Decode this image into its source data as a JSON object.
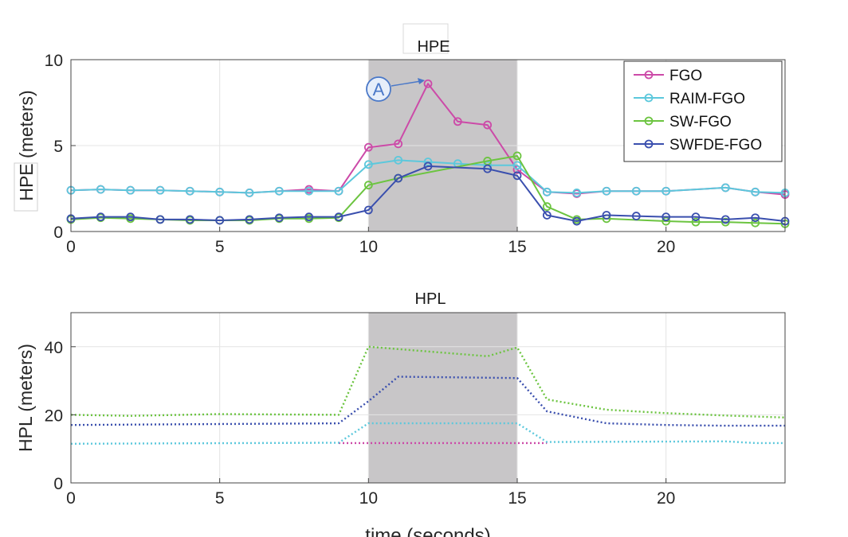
{
  "chart_data": [
    {
      "type": "line",
      "title": "HPE",
      "ylabel": "HPE (meters)",
      "xlabel": "",
      "xlim": [
        0,
        24
      ],
      "ylim": [
        0,
        10
      ],
      "xticks": [
        0,
        5,
        10,
        15,
        20
      ],
      "yticks": [
        0,
        5,
        10
      ],
      "grid": true,
      "legend_position": "top-right",
      "shaded_region": [
        10,
        15
      ],
      "marker": "circle",
      "annotation": {
        "label": "A",
        "points_to": {
          "x": 12,
          "y": 8.5
        }
      },
      "series": [
        {
          "name": "FGO",
          "color": "#cc4aa8",
          "x": [
            0,
            1,
            2,
            3,
            4,
            5,
            6,
            7,
            8,
            9,
            10,
            11,
            12,
            13,
            14,
            15,
            16,
            17,
            18,
            19,
            20,
            22,
            23,
            24
          ],
          "y": [
            2.4,
            2.45,
            2.4,
            2.4,
            2.35,
            2.3,
            2.25,
            2.35,
            2.45,
            2.35,
            4.9,
            5.1,
            8.6,
            6.4,
            6.2,
            3.6,
            2.3,
            2.2,
            2.35,
            2.35,
            2.35,
            2.55,
            2.3,
            2.15
          ]
        },
        {
          "name": "RAIM-FGO",
          "color": "#5cc8dc",
          "x": [
            0,
            1,
            2,
            3,
            4,
            5,
            6,
            7,
            8,
            9,
            10,
            11,
            12,
            13,
            14,
            15,
            16,
            17,
            18,
            19,
            20,
            22,
            23,
            24
          ],
          "y": [
            2.4,
            2.45,
            2.4,
            2.4,
            2.35,
            2.3,
            2.25,
            2.35,
            2.35,
            2.35,
            3.9,
            4.15,
            4.05,
            3.95,
            3.85,
            3.85,
            2.3,
            2.25,
            2.35,
            2.35,
            2.35,
            2.55,
            2.3,
            2.25
          ]
        },
        {
          "name": "SW-FGO",
          "color": "#6cc440",
          "x": [
            0,
            1,
            2,
            3,
            4,
            5,
            6,
            7,
            8,
            9,
            10,
            11,
            14,
            15,
            16,
            17,
            18,
            20,
            21,
            22,
            23,
            24
          ],
          "y": [
            0.7,
            0.8,
            0.75,
            0.7,
            0.65,
            0.65,
            0.65,
            0.75,
            0.75,
            0.8,
            2.7,
            3.1,
            4.1,
            4.4,
            1.45,
            0.7,
            0.75,
            0.6,
            0.55,
            0.55,
            0.5,
            0.45
          ]
        },
        {
          "name": "SWFDE-FGO",
          "color": "#3a4fae",
          "x": [
            0,
            1,
            2,
            3,
            4,
            5,
            6,
            7,
            8,
            9,
            10,
            11,
            12,
            14,
            15,
            16,
            17,
            18,
            19,
            20,
            21,
            22,
            23,
            24
          ],
          "y": [
            0.75,
            0.85,
            0.85,
            0.7,
            0.7,
            0.65,
            0.7,
            0.8,
            0.85,
            0.85,
            1.25,
            3.1,
            3.8,
            3.65,
            3.25,
            0.95,
            0.6,
            0.95,
            0.9,
            0.85,
            0.85,
            0.7,
            0.8,
            0.6
          ]
        }
      ]
    },
    {
      "type": "line",
      "title": "HPL",
      "ylabel": "HPL (meters)",
      "xlabel": "time (seconds)",
      "xlim": [
        0,
        24
      ],
      "ylim": [
        0,
        50
      ],
      "xticks": [
        0,
        5,
        10,
        15,
        20
      ],
      "yticks": [
        0,
        20,
        40
      ],
      "grid": true,
      "shaded_region": [
        10,
        15
      ],
      "line_style": "dotted",
      "series": [
        {
          "color": "#cc4aa8",
          "x": [
            9,
            16
          ],
          "y": [
            11.7,
            11.7
          ]
        },
        {
          "color": "#5cc8dc",
          "x": [
            0,
            9,
            10,
            15,
            16,
            22,
            23,
            24
          ],
          "y": [
            11.5,
            11.8,
            17.5,
            17.5,
            12.0,
            12.2,
            11.7,
            11.7
          ]
        },
        {
          "color": "#3a4fae",
          "x": [
            0,
            5,
            9,
            10,
            11,
            15,
            16,
            18,
            20,
            22,
            24
          ],
          "y": [
            17,
            17.3,
            17.5,
            24,
            31.2,
            30.8,
            21,
            17.5,
            17,
            16.8,
            16.8
          ]
        },
        {
          "color": "#6cc440",
          "x": [
            0,
            2,
            5,
            9,
            10,
            14,
            15,
            16,
            18,
            20,
            22,
            24
          ],
          "y": [
            20,
            19.7,
            20.2,
            20,
            40,
            37.2,
            39.8,
            24.5,
            21.5,
            20.5,
            19.8,
            19.2
          ]
        }
      ]
    }
  ]
}
